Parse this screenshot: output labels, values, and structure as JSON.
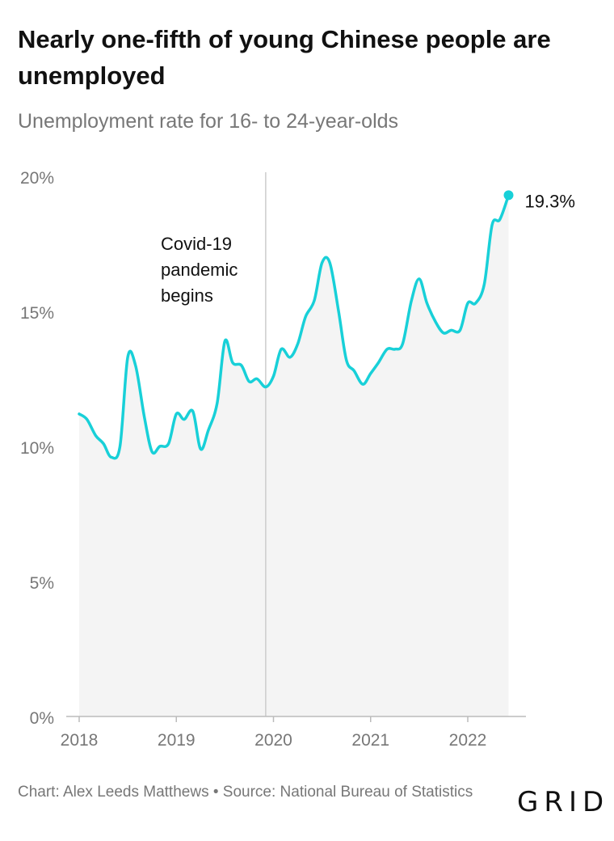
{
  "chart_data": {
    "type": "area",
    "title": "Nearly one-fifth of young Chinese people are unemployed",
    "subtitle": "Unemployment rate for 16- to 24-year-olds",
    "xlabel": "",
    "ylabel": "",
    "ylim": [
      0,
      20
    ],
    "y_ticks": [
      0,
      5,
      10,
      15,
      20
    ],
    "y_tick_labels": [
      "0%",
      "5%",
      "10%",
      "15%",
      "20%"
    ],
    "x_ticks": [
      2018,
      2019,
      2020,
      2021,
      2022
    ],
    "x_tick_labels": [
      "2018",
      "2019",
      "2020",
      "2021",
      "2022"
    ],
    "series": [
      {
        "name": "Unemployment rate, 16-24",
        "color": "#18d0d8",
        "x": [
          2018.0,
          2018.08,
          2018.17,
          2018.25,
          2018.33,
          2018.42,
          2018.5,
          2018.58,
          2018.67,
          2018.75,
          2018.83,
          2018.92,
          2019.0,
          2019.08,
          2019.17,
          2019.25,
          2019.33,
          2019.42,
          2019.5,
          2019.58,
          2019.67,
          2019.75,
          2019.83,
          2019.92,
          2020.0,
          2020.08,
          2020.17,
          2020.25,
          2020.33,
          2020.42,
          2020.5,
          2020.58,
          2020.67,
          2020.75,
          2020.83,
          2020.92,
          2021.0,
          2021.08,
          2021.17,
          2021.25,
          2021.33,
          2021.42,
          2021.5,
          2021.58,
          2021.67,
          2021.75,
          2021.83,
          2021.92,
          2022.0,
          2022.08,
          2022.17,
          2022.25,
          2022.33,
          2022.42
        ],
        "values": [
          11.2,
          11.0,
          10.4,
          10.1,
          9.6,
          10.0,
          13.3,
          13.0,
          11.1,
          9.8,
          10.0,
          10.1,
          11.2,
          11.0,
          11.3,
          9.9,
          10.6,
          11.6,
          13.9,
          13.1,
          13.0,
          12.4,
          12.5,
          12.2,
          12.6,
          13.6,
          13.3,
          13.8,
          14.8,
          15.4,
          16.8,
          16.8,
          15.0,
          13.2,
          12.8,
          12.3,
          12.7,
          13.1,
          13.6,
          13.6,
          13.8,
          15.4,
          16.2,
          15.3,
          14.6,
          14.2,
          14.3,
          14.3,
          15.3,
          15.3,
          16.0,
          18.2,
          18.4,
          19.3
        ]
      }
    ],
    "annotations": [
      {
        "text": [
          "Covid-19",
          "pandemic",
          "begins"
        ],
        "x": 2019.92
      },
      {
        "text": "19.3%",
        "x": 2022.42,
        "y": 19.3
      }
    ]
  },
  "footer": {
    "credit": "Chart: Alex Leeds Matthews • Source: National Bureau of Statistics",
    "logo": "GRID"
  }
}
